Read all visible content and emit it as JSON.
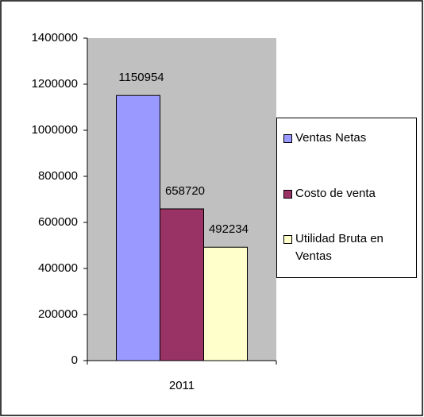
{
  "chart_data": {
    "type": "bar",
    "categories": [
      "2011"
    ],
    "series": [
      {
        "name": "Ventas Netas",
        "color": "#9999ff",
        "values": [
          1150954
        ]
      },
      {
        "name": "Costo de venta",
        "color": "#993366",
        "values": [
          658720
        ]
      },
      {
        "name": "Utilidad Bruta en Ventas",
        "color": "#ffffcc",
        "values": [
          492234
        ]
      }
    ],
    "ylim": [
      0,
      1400000
    ],
    "yticks": [
      0,
      200000,
      400000,
      600000,
      800000,
      1000000,
      1200000,
      1400000
    ],
    "plot_background": "#c0c0c0",
    "legend": "right"
  }
}
